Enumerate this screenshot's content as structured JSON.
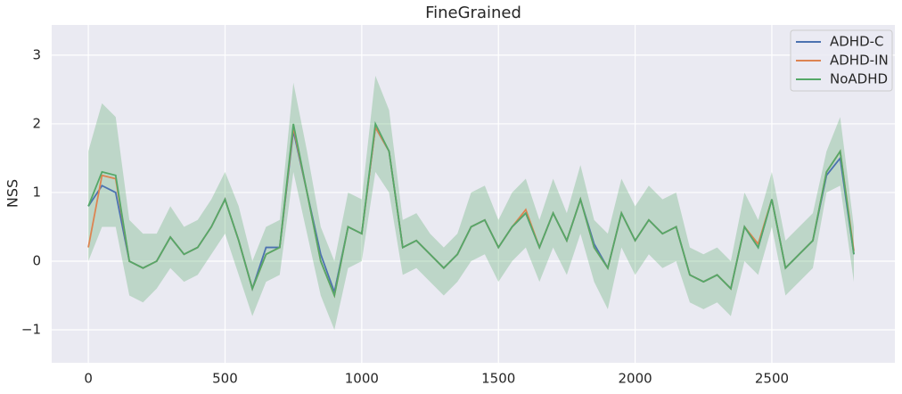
{
  "chart_data": {
    "type": "line",
    "title": "FineGrained",
    "y_label": "NSS",
    "x": [
      0,
      50,
      100,
      150,
      200,
      250,
      300,
      350,
      400,
      450,
      500,
      550,
      600,
      650,
      700,
      750,
      800,
      850,
      900,
      950,
      1000,
      1050,
      1100,
      1150,
      1200,
      1250,
      1300,
      1350,
      1400,
      1450,
      1500,
      1550,
      1600,
      1650,
      1700,
      1750,
      1800,
      1850,
      1900,
      1950,
      2000,
      2050,
      2100,
      2150,
      2200,
      2250,
      2300,
      2350,
      2400,
      2450,
      2500,
      2550,
      2600,
      2650,
      2700,
      2750,
      2800
    ],
    "series": [
      {
        "name": "ADHD-C",
        "color": "#4c72b0",
        "values": [
          0.8,
          1.1,
          1.0,
          0.0,
          -0.1,
          0.0,
          0.35,
          0.1,
          0.2,
          0.5,
          0.9,
          0.3,
          -0.4,
          0.2,
          0.2,
          1.9,
          1.0,
          0.1,
          -0.45,
          0.5,
          0.4,
          1.95,
          1.6,
          0.2,
          0.3,
          0.1,
          -0.1,
          0.1,
          0.5,
          0.6,
          0.2,
          0.5,
          0.7,
          0.2,
          0.7,
          0.3,
          0.9,
          0.25,
          -0.1,
          0.7,
          0.3,
          0.6,
          0.4,
          0.5,
          -0.2,
          -0.3,
          -0.2,
          -0.4,
          0.5,
          0.2,
          0.9,
          -0.1,
          0.1,
          0.3,
          1.25,
          1.5,
          0.1
        ]
      },
      {
        "name": "ADHD-IN",
        "color": "#dd8452",
        "values": [
          0.2,
          1.25,
          1.2,
          0.0,
          -0.1,
          0.0,
          0.35,
          0.1,
          0.2,
          0.5,
          0.9,
          0.3,
          -0.4,
          0.1,
          0.2,
          1.95,
          1.0,
          0.0,
          -0.5,
          0.5,
          0.4,
          1.95,
          1.6,
          0.2,
          0.3,
          0.1,
          -0.1,
          0.1,
          0.5,
          0.6,
          0.2,
          0.5,
          0.75,
          0.2,
          0.7,
          0.3,
          0.9,
          0.2,
          -0.1,
          0.7,
          0.3,
          0.6,
          0.4,
          0.5,
          -0.2,
          -0.3,
          -0.2,
          -0.4,
          0.5,
          0.25,
          0.9,
          -0.1,
          0.1,
          0.3,
          1.3,
          1.6,
          0.15
        ]
      },
      {
        "name": "NoADHD",
        "color": "#55a868",
        "values": [
          0.8,
          1.3,
          1.25,
          0.0,
          -0.1,
          0.0,
          0.35,
          0.1,
          0.2,
          0.5,
          0.9,
          0.3,
          -0.4,
          0.1,
          0.2,
          2.0,
          1.0,
          0.0,
          -0.5,
          0.5,
          0.4,
          2.0,
          1.6,
          0.2,
          0.3,
          0.1,
          -0.1,
          0.1,
          0.5,
          0.6,
          0.2,
          0.5,
          0.7,
          0.2,
          0.7,
          0.3,
          0.9,
          0.2,
          -0.1,
          0.7,
          0.3,
          0.6,
          0.4,
          0.5,
          -0.2,
          -0.3,
          -0.2,
          -0.4,
          0.5,
          0.2,
          0.9,
          -0.1,
          0.1,
          0.3,
          1.3,
          1.6,
          0.1
        ],
        "lower": [
          0.0,
          0.5,
          0.5,
          -0.5,
          -0.6,
          -0.4,
          -0.1,
          -0.3,
          -0.2,
          0.1,
          0.4,
          -0.2,
          -0.8,
          -0.3,
          -0.2,
          1.3,
          0.4,
          -0.5,
          -1.0,
          -0.1,
          0.0,
          1.3,
          1.0,
          -0.2,
          -0.1,
          -0.3,
          -0.5,
          -0.3,
          0.0,
          0.1,
          -0.3,
          0.0,
          0.2,
          -0.3,
          0.2,
          -0.2,
          0.4,
          -0.3,
          -0.7,
          0.2,
          -0.2,
          0.1,
          -0.1,
          0.0,
          -0.6,
          -0.7,
          -0.6,
          -0.8,
          0.0,
          -0.2,
          0.5,
          -0.5,
          -0.3,
          -0.1,
          1.0,
          1.1,
          -0.3
        ],
        "upper": [
          1.6,
          2.3,
          2.1,
          0.6,
          0.4,
          0.4,
          0.8,
          0.5,
          0.6,
          0.9,
          1.3,
          0.8,
          0.0,
          0.5,
          0.6,
          2.6,
          1.6,
          0.5,
          0.0,
          1.0,
          0.9,
          2.7,
          2.2,
          0.6,
          0.7,
          0.4,
          0.2,
          0.4,
          1.0,
          1.1,
          0.6,
          1.0,
          1.2,
          0.6,
          1.2,
          0.7,
          1.4,
          0.6,
          0.4,
          1.2,
          0.8,
          1.1,
          0.9,
          1.0,
          0.2,
          0.1,
          0.2,
          0.0,
          1.0,
          0.6,
          1.3,
          0.3,
          0.5,
          0.7,
          1.6,
          2.1,
          0.5
        ]
      }
    ],
    "xlim": [
      -134,
      2950
    ],
    "ylim": [
      -1.48,
      3.44
    ],
    "xticks": [
      0,
      500,
      1000,
      1500,
      2000,
      2500
    ],
    "yticks": [
      {
        "value": -1,
        "label": "−1"
      },
      0,
      1,
      2,
      3
    ],
    "grid": true,
    "legend": "upper right"
  }
}
